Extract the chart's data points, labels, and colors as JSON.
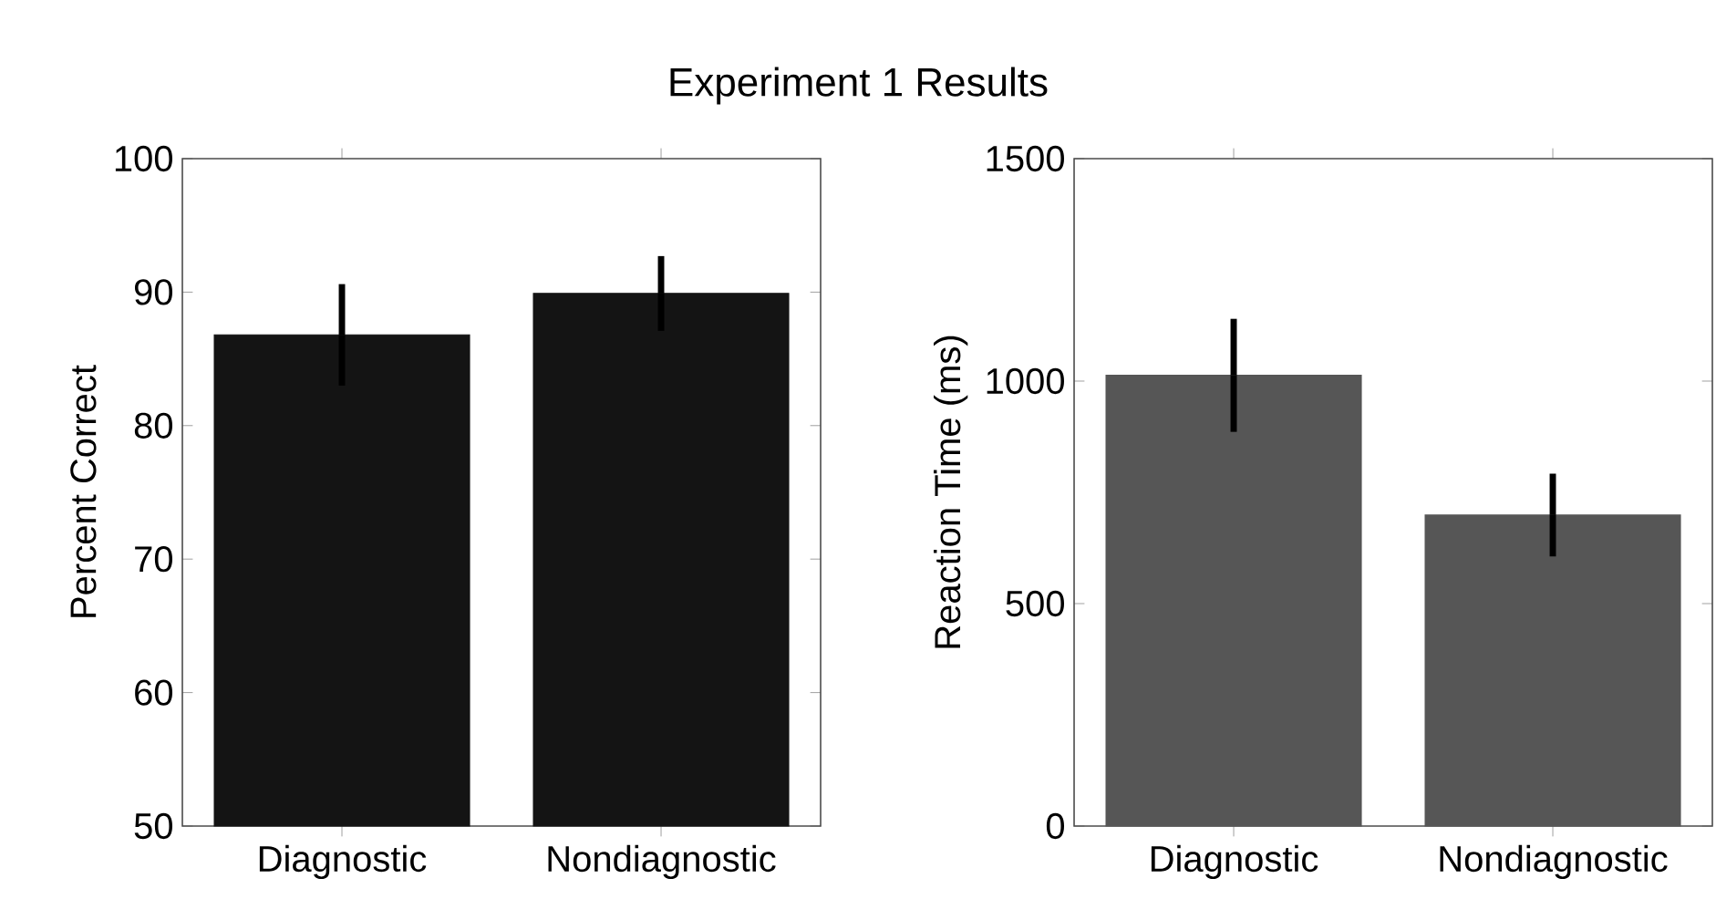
{
  "chart_data": [
    {
      "type": "bar",
      "title": "Experiment 1 Results",
      "categories": [
        "Diagnostic",
        "Nondiagnostic"
      ],
      "values": [
        86.8,
        89.9
      ],
      "errors": [
        3.8,
        2.8
      ],
      "color": "#141414",
      "ylabel": "Percent Correct",
      "ylim": [
        50,
        100
      ],
      "yticks": [
        50,
        60,
        70,
        80,
        90,
        100
      ]
    },
    {
      "type": "bar",
      "categories": [
        "Diagnostic",
        "Nondiagnostic"
      ],
      "values": [
        1013,
        699
      ],
      "errors": [
        127,
        93
      ],
      "color": "#565656",
      "ylabel": "Reaction Time (ms)",
      "ylim": [
        0,
        1500
      ],
      "yticks": [
        0,
        500,
        1000,
        1500
      ]
    }
  ]
}
